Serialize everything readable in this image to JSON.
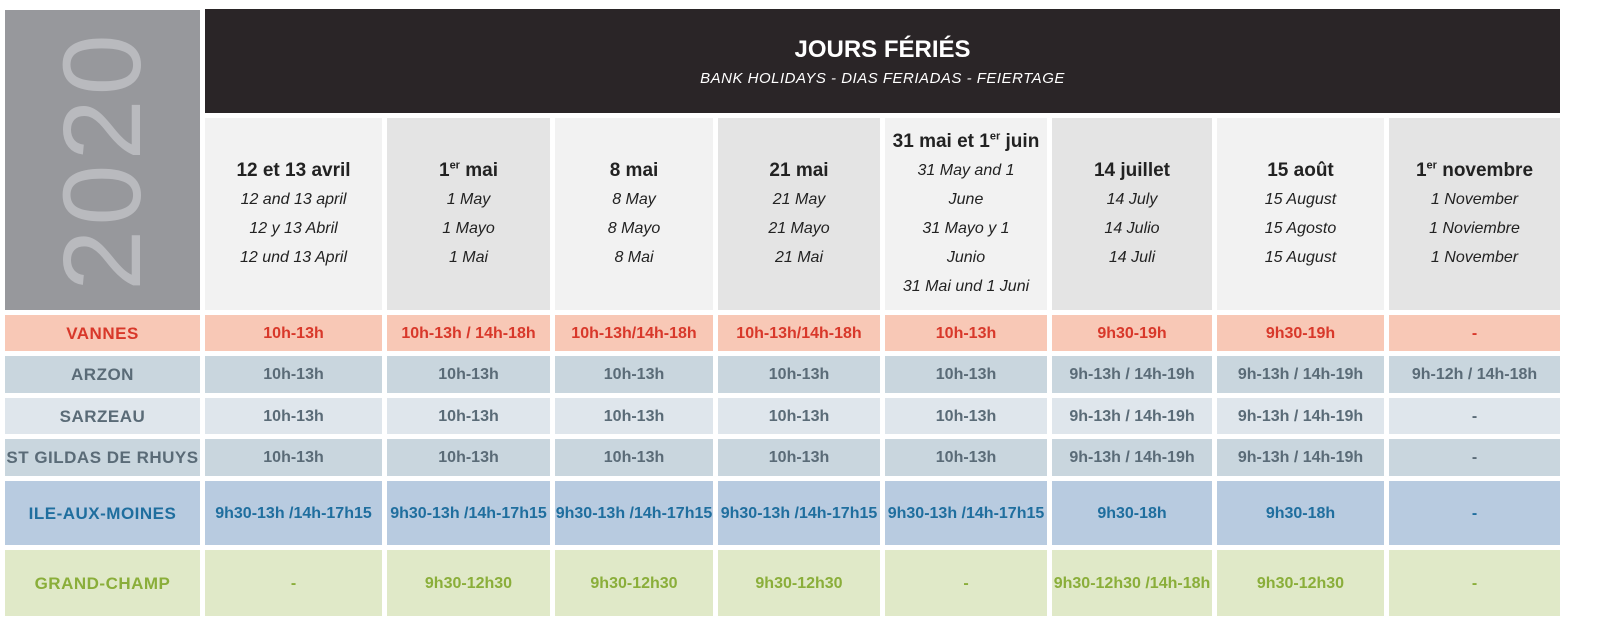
{
  "year": "2020",
  "banner": {
    "title": "JOURS FÉRIÉS",
    "subtitle": "BANK HOLIDAYS - DIAS FERIADAS - FEIERTAGE"
  },
  "columns": [
    {
      "fr": "12 et 13 avril",
      "tr": [
        "12 and 13 april",
        "12 y 13 Abril",
        "12 und 13 April"
      ]
    },
    {
      "fr_pre": "1",
      "fr_sup": "er",
      "fr": " mai",
      "tr": [
        "1 May",
        "1 Mayo",
        "1 Mai"
      ]
    },
    {
      "fr": "8 mai",
      "tr": [
        "8 May",
        "8 Mayo",
        "8 Mai"
      ]
    },
    {
      "fr": "21 mai",
      "tr": [
        "21 May",
        "21 Mayo",
        "21 Mai"
      ]
    },
    {
      "fr_pre": "31 mai et 1",
      "fr_sup": "er",
      "fr": " juin",
      "tr": [
        "31 May and 1",
        "June",
        "31 Mayo y 1",
        "Junio",
        "31 Mai und 1 Juni"
      ]
    },
    {
      "fr": "14 juillet",
      "tr": [
        "14 July",
        "14 Julio",
        "14 Juli"
      ]
    },
    {
      "fr": "15 août",
      "tr": [
        "15 August",
        "15 Agosto",
        "15 August"
      ]
    },
    {
      "fr_pre": "1",
      "fr_sup": "er",
      "fr": " novembre",
      "tr": [
        "1 November",
        "1 Noviembre",
        "1 November"
      ]
    }
  ],
  "rows": [
    {
      "name": "VANNES",
      "color": "#d8382a",
      "cells": [
        "10h-13h",
        "10h-13h / 14h-18h",
        "10h-13h/14h-18h",
        "10h-13h/14h-18h",
        "10h-13h",
        "9h30-19h",
        "9h30-19h",
        "-"
      ]
    },
    {
      "name": "ARZON",
      "color": "#5a6b77",
      "cells": [
        "10h-13h",
        "10h-13h",
        "10h-13h",
        "10h-13h",
        "10h-13h",
        "9h-13h / 14h-19h",
        "9h-13h / 14h-19h",
        "9h-12h / 14h-18h"
      ]
    },
    {
      "name": "SARZEAU",
      "color": "#5a6b77",
      "cells": [
        "10h-13h",
        "10h-13h",
        "10h-13h",
        "10h-13h",
        "10h-13h",
        "9h-13h / 14h-19h",
        "9h-13h / 14h-19h",
        "-"
      ]
    },
    {
      "name": "ST GILDAS DE RHUYS",
      "color": "#5a6b77",
      "cells": [
        "10h-13h",
        "10h-13h",
        "10h-13h",
        "10h-13h",
        "10h-13h",
        "9h-13h / 14h-19h",
        "9h-13h / 14h-19h",
        "-"
      ]
    },
    {
      "name": "ILE-AUX-MOINES",
      "color": "#1f6e9e",
      "cells": [
        "9h30-13h / 14h-17h15",
        "9h30-13h / 14h-17h15",
        "9h30-13h / 14h-17h15",
        "9h30-13h / 14h-17h15",
        "9h30-13h / 14h-17h15",
        "9h30-18h",
        "9h30-18h",
        "-"
      ]
    },
    {
      "name": "GRAND-CHAMP",
      "color": "#8aae3a",
      "cells": [
        "-",
        "9h30-12h30",
        "9h30-12h30",
        "9h30-12h30",
        "-",
        "9h30-12h30 / 14h-18h",
        "9h30-12h30",
        "-"
      ]
    }
  ]
}
